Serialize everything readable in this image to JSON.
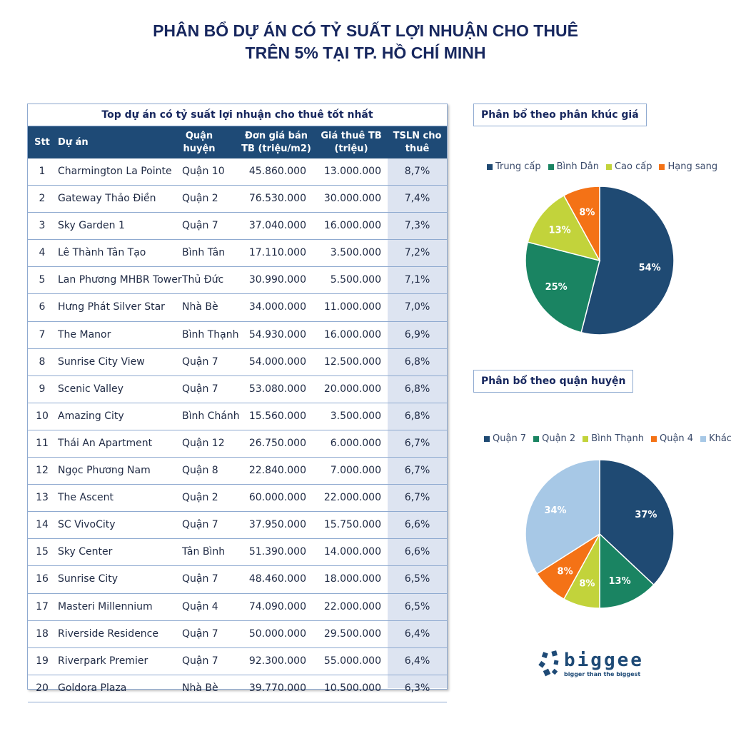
{
  "title": {
    "line1": "PHÂN BỔ DỰ ÁN CÓ TỶ SUẤT LỢI NHUẬN CHO THUÊ",
    "line2": "TRÊN 5% TẠI TP. HỒ CHÍ MINH"
  },
  "table": {
    "title": "Top dự án có tỷ suất lợi nhuận  cho thuê tốt nhất",
    "headers": {
      "stt": "Stt",
      "name": "Dự án",
      "district": "Quận huyện",
      "price": "Đơn giá bán TB (triệu/m2)",
      "rent": "Giá thuê TB (triệu)",
      "yield": "TSLN cho thuê"
    },
    "rows": [
      [
        "1",
        "Charmington La Pointe",
        "Quận 10",
        "45.860.000",
        "13.000.000",
        "8,7%"
      ],
      [
        "2",
        "Gateway Thảo Điền",
        "Quận 2",
        "76.530.000",
        "30.000.000",
        "7,4%"
      ],
      [
        "3",
        "Sky Garden 1",
        "Quận 7",
        "37.040.000",
        "16.000.000",
        "7,3%"
      ],
      [
        "4",
        "Lê Thành Tân Tạo",
        "Bình Tân",
        "17.110.000",
        "3.500.000",
        "7,2%"
      ],
      [
        "5",
        "Lan Phương MHBR Tower",
        "Thủ Đức",
        "30.990.000",
        "5.500.000",
        "7,1%"
      ],
      [
        "6",
        "Hưng Phát Silver Star",
        "Nhà Bè",
        "34.000.000",
        "11.000.000",
        "7,0%"
      ],
      [
        "7",
        "The Manor",
        "Bình Thạnh",
        "54.930.000",
        "16.000.000",
        "6,9%"
      ],
      [
        "8",
        "Sunrise City View",
        "Quận 7",
        "54.000.000",
        "12.500.000",
        "6,8%"
      ],
      [
        "9",
        "Scenic Valley",
        "Quận 7",
        "53.080.000",
        "20.000.000",
        "6,8%"
      ],
      [
        "10",
        "Amazing City",
        "Bình Chánh",
        "15.560.000",
        "3.500.000",
        "6,8%"
      ],
      [
        "11",
        "Thái An Apartment",
        "Quận 12",
        "26.750.000",
        "6.000.000",
        "6,7%"
      ],
      [
        "12",
        "Ngọc Phương Nam",
        "Quận 8",
        "22.840.000",
        "7.000.000",
        "6,7%"
      ],
      [
        "13",
        "The Ascent",
        "Quận 2",
        "60.000.000",
        "22.000.000",
        "6,7%"
      ],
      [
        "14",
        "SC VivoCity",
        "Quận 7",
        "37.950.000",
        "15.750.000",
        "6,6%"
      ],
      [
        "15",
        "Sky Center",
        "Tân Bình",
        "51.390.000",
        "14.000.000",
        "6,6%"
      ],
      [
        "16",
        "Sunrise City",
        "Quận 7",
        "48.460.000",
        "18.000.000",
        "6,5%"
      ],
      [
        "17",
        "Masteri Millennium",
        "Quận 4",
        "74.090.000",
        "22.000.000",
        "6,5%"
      ],
      [
        "18",
        "Riverside Residence",
        "Quận 7",
        "50.000.000",
        "29.500.000",
        "6,4%"
      ],
      [
        "19",
        "Riverpark Premier",
        "Quận 7",
        "92.300.000",
        "55.000.000",
        "6,4%"
      ],
      [
        "20",
        "Goldora Plaza",
        "Nhà Bè",
        "39.770.000",
        "10.500.000",
        "6,3%"
      ]
    ]
  },
  "chart_data": [
    {
      "type": "pie",
      "title": "Phân bổ theo phân khúc giá",
      "legend_position": "top",
      "categories": [
        "Trung cấp",
        "Bình Dân",
        "Cao cấp",
        "Hạng sang"
      ],
      "values": [
        54,
        25,
        13,
        8
      ],
      "labels": [
        "54%",
        "25%",
        "13%",
        "8%"
      ],
      "colors": [
        "#1f4a73",
        "#1a8462",
        "#c2d33b",
        "#f47216"
      ]
    },
    {
      "type": "pie",
      "title": "Phân bổ theo quận huyện",
      "legend_position": "top",
      "categories": [
        "Quận 7",
        "Quận 2",
        "Bình Thạnh",
        "Quận 4",
        "Khác"
      ],
      "values": [
        37,
        13,
        8,
        8,
        34
      ],
      "labels": [
        "37%",
        "13%",
        "8%",
        "8%",
        "34%"
      ],
      "colors": [
        "#1f4a73",
        "#1a8462",
        "#c2d33b",
        "#f47216",
        "#a7c8e6"
      ]
    }
  ],
  "logo": {
    "name": "biggee",
    "tagline": "bigger than the biggest",
    "color": "#1e4a76"
  }
}
